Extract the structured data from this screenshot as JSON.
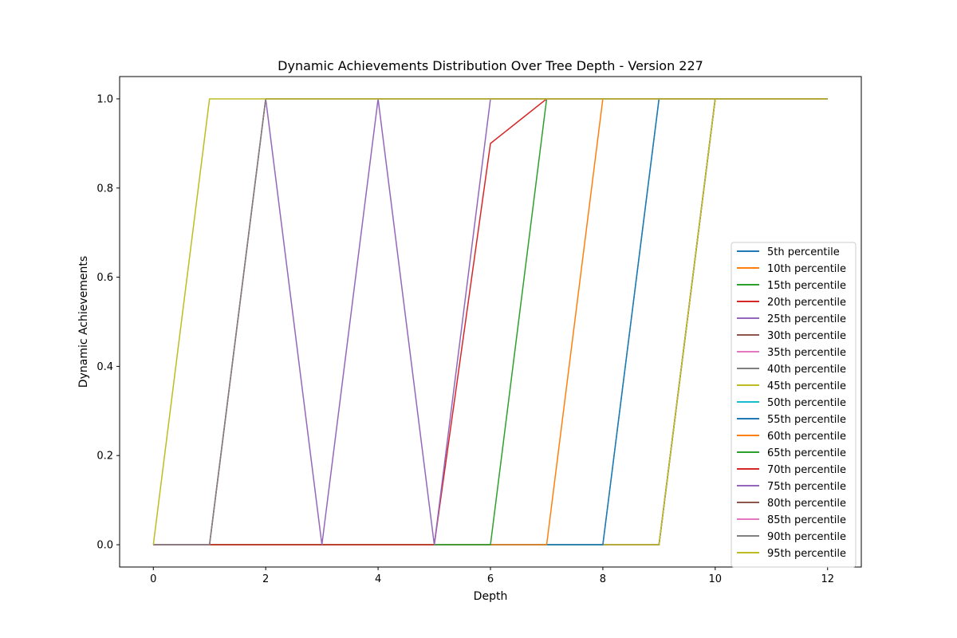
{
  "chart_data": {
    "type": "line",
    "title": "Dynamic Achievements Distribution Over Tree Depth - Version 227",
    "xlabel": "Depth",
    "ylabel": "Dynamic Achievements",
    "xlim": [
      -0.6,
      12.6
    ],
    "ylim": [
      -0.05,
      1.05
    ],
    "xticks": [
      0,
      2,
      4,
      6,
      8,
      10,
      12
    ],
    "yticks": [
      0.0,
      0.2,
      0.4,
      0.6,
      0.8,
      1.0
    ],
    "xtick_labels": [
      "0",
      "2",
      "4",
      "6",
      "8",
      "10",
      "12"
    ],
    "ytick_labels": [
      "0.0",
      "0.2",
      "0.4",
      "0.6",
      "0.8",
      "1.0"
    ],
    "grid": false,
    "legend_position": "lower-right",
    "x": [
      0,
      1,
      2,
      3,
      4,
      5,
      6,
      7,
      8,
      9,
      10,
      11,
      12
    ],
    "series": [
      {
        "name": "5th percentile",
        "color": "#1f77b4",
        "values": [
          0,
          0,
          0,
          0,
          0,
          0,
          0,
          0,
          0,
          0,
          1,
          1,
          1
        ]
      },
      {
        "name": "10th percentile",
        "color": "#ff7f0e",
        "values": [
          0,
          0,
          0,
          0,
          0,
          0,
          0,
          0,
          0,
          0,
          1,
          1,
          1
        ]
      },
      {
        "name": "15th percentile",
        "color": "#2ca02c",
        "values": [
          0,
          0,
          0,
          0,
          0,
          0,
          0,
          0,
          0,
          0,
          1,
          1,
          1
        ]
      },
      {
        "name": "20th percentile",
        "color": "#d62728",
        "values": [
          0,
          0,
          0,
          0,
          0,
          0,
          0,
          0,
          0,
          0,
          1,
          1,
          1
        ]
      },
      {
        "name": "25th percentile",
        "color": "#9467bd",
        "values": [
          0,
          0,
          0,
          0,
          0,
          0,
          0,
          0,
          0,
          0,
          1,
          1,
          1
        ]
      },
      {
        "name": "30th percentile",
        "color": "#8c564b",
        "values": [
          0,
          0,
          0,
          0,
          0,
          0,
          0,
          0,
          0,
          0,
          1,
          1,
          1
        ]
      },
      {
        "name": "35th percentile",
        "color": "#e377c2",
        "values": [
          0,
          0,
          0,
          0,
          0,
          0,
          0,
          0,
          0,
          0,
          1,
          1,
          1
        ]
      },
      {
        "name": "40th percentile",
        "color": "#7f7f7f",
        "values": [
          0,
          0,
          0,
          0,
          0,
          0,
          0,
          0,
          0,
          0,
          1,
          1,
          1
        ]
      },
      {
        "name": "45th percentile",
        "color": "#bcbd22",
        "values": [
          0,
          0,
          0,
          0,
          0,
          0,
          0,
          0,
          0,
          0,
          1,
          1,
          1
        ]
      },
      {
        "name": "50th percentile",
        "color": "#17becf",
        "values": [
          0,
          0,
          0,
          0,
          0,
          0,
          0,
          0,
          0,
          1,
          1,
          1,
          1
        ]
      },
      {
        "name": "55th percentile",
        "color": "#1f77b4",
        "values": [
          0,
          0,
          0,
          0,
          0,
          0,
          0,
          0,
          0,
          1,
          1,
          1,
          1
        ]
      },
      {
        "name": "60th percentile",
        "color": "#ff7f0e",
        "values": [
          0,
          0,
          0,
          0,
          0,
          0,
          0,
          0,
          1,
          1,
          1,
          1,
          1
        ]
      },
      {
        "name": "65th percentile",
        "color": "#2ca02c",
        "values": [
          0,
          0,
          0,
          0,
          0,
          0,
          0,
          1,
          1,
          1,
          1,
          1,
          1
        ]
      },
      {
        "name": "70th percentile",
        "color": "#d62728",
        "values": [
          0,
          0,
          0,
          0,
          0,
          0,
          0.9,
          1,
          1,
          1,
          1,
          1,
          1
        ]
      },
      {
        "name": "75th percentile",
        "color": "#9467bd",
        "values": [
          0,
          0,
          1,
          0,
          1,
          0,
          1,
          1,
          1,
          1,
          1,
          1,
          1
        ]
      },
      {
        "name": "80th percentile",
        "color": "#8c564b",
        "values": [
          0,
          0,
          1,
          1,
          1,
          1,
          1,
          1,
          1,
          1,
          1,
          1,
          1
        ]
      },
      {
        "name": "85th percentile",
        "color": "#e377c2",
        "values": [
          0,
          0,
          1,
          1,
          1,
          1,
          1,
          1,
          1,
          1,
          1,
          1,
          1
        ]
      },
      {
        "name": "90th percentile",
        "color": "#7f7f7f",
        "values": [
          0,
          0,
          1,
          1,
          1,
          1,
          1,
          1,
          1,
          1,
          1,
          1,
          1
        ]
      },
      {
        "name": "95th percentile",
        "color": "#bcbd22",
        "values": [
          0,
          1,
          1,
          1,
          1,
          1,
          1,
          1,
          1,
          1,
          1,
          1,
          1
        ]
      }
    ]
  }
}
